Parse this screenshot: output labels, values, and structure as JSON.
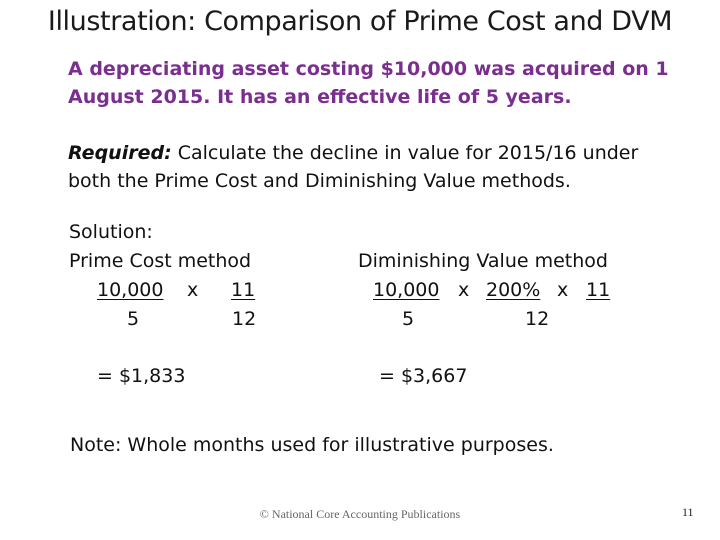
{
  "slide": {
    "title": "Illustration: Comparison of Prime Cost and DVM",
    "intro_line1": "A depreciating asset costing $10,000 was acquired on 1",
    "intro_line2": "August 2015.  It has an effective life of 5 years.",
    "required_label": "Required:",
    "required_text1": " Calculate the decline in value for 2015/16 under",
    "required_text2": "both the Prime Cost and Diminishing Value methods.",
    "solution_label": "Solution:",
    "prime_cost": {
      "heading": "Prime Cost method",
      "numerator_cost": "10,000",
      "times": "x",
      "numerator_months": "11",
      "denominator_life": "5",
      "denominator_months": "12",
      "result": "= $1,833"
    },
    "diminishing_value": {
      "heading": "Diminishing Value method",
      "numerator_cost": "10,000",
      "times1": "x",
      "rate": "200%",
      "times2": "x",
      "numerator_months": "11",
      "denominator_life": "5",
      "denominator_months": "12",
      "result": "= $3,667"
    },
    "note": "Note: Whole months used for illustrative purposes.",
    "footer": "© National Core Accounting Publications",
    "page_number": "11"
  }
}
